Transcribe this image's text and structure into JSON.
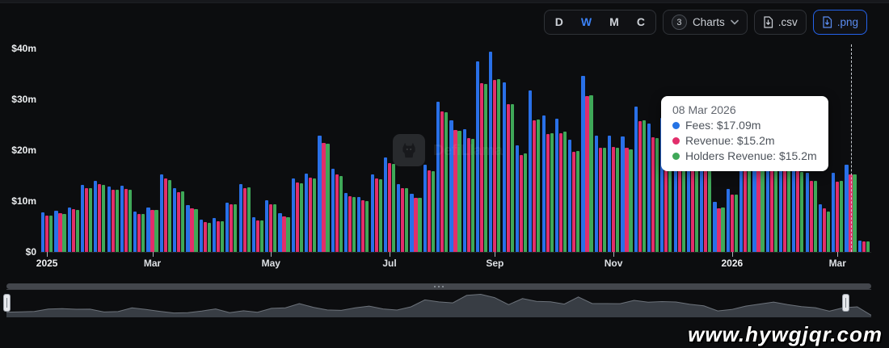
{
  "controls": {
    "range_buttons": [
      {
        "label": "D",
        "active": false
      },
      {
        "label": "W",
        "active": true
      },
      {
        "label": "M",
        "active": false
      },
      {
        "label": "C",
        "active": false
      }
    ],
    "charts_dropdown": {
      "count": "3",
      "label": "Charts"
    },
    "csv_button": {
      "label": ".csv"
    },
    "png_button": {
      "label": ".png"
    }
  },
  "tooltip": {
    "date": "08 Mar 2026",
    "items": [
      {
        "text": "Fees: $17.09m",
        "color": "#2473e5"
      },
      {
        "text": "Revenue: $15.2m",
        "color": "#e22e6b"
      },
      {
        "text": "Holders Revenue: $15.2m",
        "color": "#3fa858"
      }
    ]
  },
  "watermark": {
    "logo_text": "DefiLlama",
    "site_text": "www.hywgjqr.com"
  },
  "chart_data": {
    "type": "bar",
    "title": "",
    "xlabel": "",
    "ylabel": "",
    "ylim": [
      0,
      40
    ],
    "grid": false,
    "legend_position": "none",
    "units": "$m",
    "hover_index": 61,
    "y_ticks": [
      {
        "value": 0,
        "label": "$0"
      },
      {
        "value": 10,
        "label": "$10m"
      },
      {
        "value": 20,
        "label": "$20m"
      },
      {
        "value": 30,
        "label": "$30m"
      },
      {
        "value": 40,
        "label": "$40m"
      }
    ],
    "x_ticks": [
      {
        "index": 0,
        "label": "2025",
        "bold": true
      },
      {
        "index": 8,
        "label": "Mar",
        "bold": false
      },
      {
        "index": 17,
        "label": "May",
        "bold": false
      },
      {
        "index": 26,
        "label": "Jul",
        "bold": false
      },
      {
        "index": 34,
        "label": "Sep",
        "bold": false
      },
      {
        "index": 43,
        "label": "Nov",
        "bold": false
      },
      {
        "index": 52,
        "label": "2026",
        "bold": true
      },
      {
        "index": 60,
        "label": "Mar",
        "bold": false
      }
    ],
    "x": [
      "05 Jan 2025",
      "12 Jan 2025",
      "19 Jan 2025",
      "26 Jan 2025",
      "02 Feb 2025",
      "09 Feb 2025",
      "16 Feb 2025",
      "23 Feb 2025",
      "02 Mar 2025",
      "09 Mar 2025",
      "16 Mar 2025",
      "23 Mar 2025",
      "30 Mar 2025",
      "06 Apr 2025",
      "13 Apr 2025",
      "20 Apr 2025",
      "27 Apr 2025",
      "04 May 2025",
      "11 May 2025",
      "18 May 2025",
      "25 May 2025",
      "01 Jun 2025",
      "08 Jun 2025",
      "15 Jun 2025",
      "22 Jun 2025",
      "29 Jun 2025",
      "06 Jul 2025",
      "13 Jul 2025",
      "20 Jul 2025",
      "27 Jul 2025",
      "03 Aug 2025",
      "10 Aug 2025",
      "17 Aug 2025",
      "24 Aug 2025",
      "31 Aug 2025",
      "07 Sep 2025",
      "14 Sep 2025",
      "21 Sep 2025",
      "28 Sep 2025",
      "05 Oct 2025",
      "12 Oct 2025",
      "19 Oct 2025",
      "26 Oct 2025",
      "02 Nov 2025",
      "09 Nov 2025",
      "16 Nov 2025",
      "23 Nov 2025",
      "30 Nov 2025",
      "07 Dec 2025",
      "14 Dec 2025",
      "21 Dec 2025",
      "28 Dec 2025",
      "04 Jan 2026",
      "11 Jan 2026",
      "18 Jan 2026",
      "25 Jan 2026",
      "01 Feb 2026",
      "08 Feb 2026",
      "15 Feb 2026",
      "22 Feb 2026",
      "01 Mar 2026",
      "08 Mar 2026",
      "15 Mar 2026"
    ],
    "series": [
      {
        "name": "Fees",
        "color": "#2970e8",
        "values": [
          7.7,
          8.1,
          8.8,
          13.2,
          14.0,
          12.8,
          13.0,
          8.0,
          8.7,
          15.3,
          12.5,
          9.2,
          6.3,
          6.7,
          9.7,
          13.4,
          6.8,
          10.1,
          7.6,
          14.4,
          15.4,
          22.9,
          16.3,
          11.6,
          10.8,
          15.3,
          18.5,
          13.4,
          11.4,
          17.1,
          29.5,
          25.8,
          24.1,
          37.5,
          39.3,
          33.4,
          21.0,
          31.7,
          26.9,
          26.2,
          22.0,
          34.6,
          22.9,
          22.8,
          22.7,
          28.6,
          25.3,
          26.4,
          25.7,
          21.5,
          18.8,
          9.8,
          12.4,
          18.5,
          22.0,
          25.5,
          21.0,
          17.5,
          15.5,
          9.4,
          15.6,
          17.09,
          2.2
        ]
      },
      {
        "name": "Revenue",
        "color": "#e22e6b",
        "values": [
          7.2,
          7.6,
          8.4,
          12.6,
          13.3,
          12.3,
          12.4,
          7.5,
          8.3,
          14.5,
          11.7,
          8.5,
          5.8,
          6.1,
          9.3,
          12.6,
          6.2,
          9.4,
          7.0,
          13.6,
          14.6,
          21.5,
          15.2,
          10.9,
          10.1,
          14.4,
          17.4,
          12.6,
          10.7,
          16.0,
          27.6,
          23.9,
          22.4,
          33.1,
          33.8,
          29.0,
          19.1,
          25.9,
          23.1,
          23.4,
          19.7,
          30.7,
          20.4,
          20.6,
          20.4,
          25.7,
          22.5,
          24.1,
          23.2,
          19.5,
          17.0,
          8.6,
          11.2,
          16.8,
          20.0,
          23.0,
          19.0,
          15.8,
          14.0,
          8.5,
          13.8,
          15.2,
          2.0
        ]
      },
      {
        "name": "Holders Revenue",
        "color": "#3fa858",
        "values": [
          7.1,
          7.5,
          8.3,
          12.5,
          13.2,
          12.2,
          12.3,
          7.4,
          8.2,
          14.2,
          11.9,
          8.4,
          5.7,
          6.0,
          9.4,
          12.7,
          6.2,
          9.3,
          6.9,
          13.5,
          14.5,
          21.3,
          15.0,
          10.8,
          10.0,
          14.3,
          17.3,
          12.5,
          10.6,
          15.9,
          27.4,
          23.8,
          22.3,
          33.0,
          33.9,
          29.0,
          19.3,
          26.1,
          23.3,
          23.6,
          19.9,
          30.8,
          20.5,
          20.4,
          20.2,
          25.8,
          22.4,
          23.7,
          23.0,
          19.3,
          16.9,
          8.7,
          11.3,
          16.7,
          19.8,
          22.8,
          18.9,
          15.7,
          13.9,
          7.9,
          13.9,
          15.2,
          2.0
        ]
      }
    ]
  }
}
